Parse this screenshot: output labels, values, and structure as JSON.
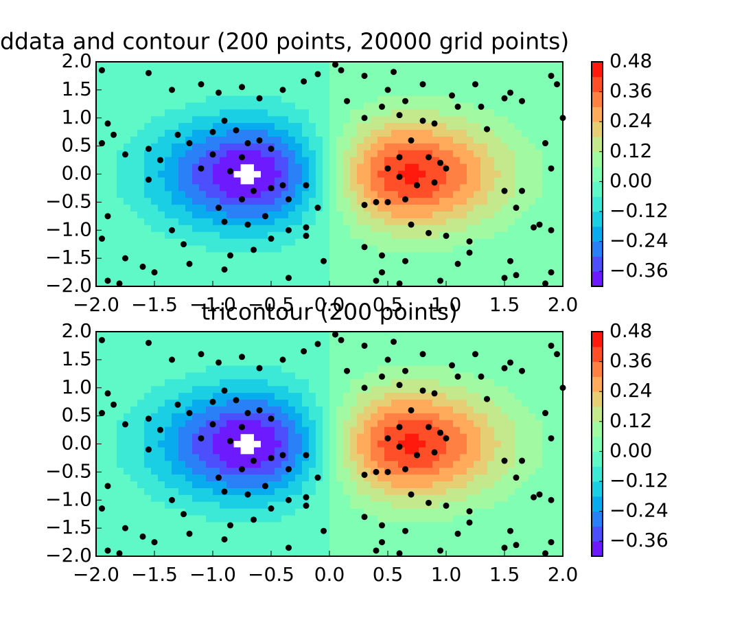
{
  "chart_data": [
    {
      "type": "contour",
      "title": "ddata and contour (200 points, 20000 grid points)",
      "x": [
        -1.95,
        -1.55,
        -1.35,
        -1.1,
        -0.95,
        -0.75,
        -0.6,
        -0.4,
        -0.22,
        -0.1,
        0.1,
        0.3,
        0.5,
        0.55,
        0.8,
        1.05,
        1.25,
        1.55,
        1.9,
        1.95,
        -1.9,
        -1.85,
        -1.95,
        -1.75,
        -1.55,
        -1.3,
        -1.2,
        -1.0,
        -0.9,
        -0.8,
        -0.7,
        -0.6,
        -0.5,
        -0.85,
        -0.75,
        -1.0,
        -1.1,
        -1.45,
        -1.55,
        -0.65,
        -0.75,
        -0.5,
        -0.35,
        -0.4,
        -0.2,
        -0.95,
        -0.55,
        -0.9,
        -0.7,
        -0.2,
        -0.1,
        -1.35,
        -1.25,
        -0.65,
        -0.85,
        -0.5,
        -0.35,
        -0.2,
        -1.9,
        -1.95,
        -1.75,
        -1.6,
        -1.5,
        -1.2,
        -0.9,
        -0.35,
        -0.05,
        -1.8,
        -1.9,
        0.15,
        0.3,
        0.45,
        0.6,
        0.65,
        1.1,
        1.3,
        1.5,
        1.35,
        0.9,
        0.8,
        0.7,
        0.6,
        0.85,
        0.95,
        1.0,
        0.5,
        0.6,
        0.75,
        0.9,
        0.4,
        0.5,
        0.65,
        0.3,
        0.3,
        0.7,
        0.85,
        1.0,
        1.2,
        1.5,
        1.65,
        1.6,
        1.8,
        1.9,
        1.75,
        1.9,
        1.85,
        2.0,
        1.65,
        0.45,
        0.45,
        0.4,
        0.65,
        1.1,
        1.5,
        1.6,
        1.85,
        1.9,
        0.05,
        0.6,
        0.95,
        1.2,
        1.55
      ],
      "y": [
        1.85,
        1.8,
        1.5,
        1.6,
        1.45,
        1.55,
        1.35,
        1.5,
        1.65,
        1.78,
        1.85,
        1.75,
        1.5,
        1.82,
        1.6,
        1.4,
        1.6,
        1.45,
        1.75,
        1.6,
        0.9,
        0.7,
        0.55,
        0.35,
        0.45,
        0.7,
        0.55,
        0.75,
        0.95,
        0.78,
        0.55,
        0.6,
        0.45,
        0.05,
        0.3,
        0.35,
        0.1,
        0.25,
        -0.1,
        -0.3,
        -0.45,
        -0.25,
        -0.45,
        -0.2,
        -0.2,
        -0.6,
        -0.75,
        -0.85,
        -0.9,
        -0.95,
        -0.6,
        -1.0,
        -1.25,
        -1.35,
        -1.45,
        -1.15,
        -1.0,
        -1.1,
        -0.75,
        -1.15,
        -1.5,
        -1.65,
        -1.75,
        -1.6,
        -1.7,
        -1.85,
        -1.55,
        -1.95,
        -1.9,
        1.3,
        1.0,
        1.2,
        1.05,
        1.3,
        1.2,
        1.2,
        1.35,
        0.8,
        0.9,
        0.95,
        0.6,
        0.3,
        0.3,
        0.2,
        0.1,
        0.1,
        -0.05,
        -0.2,
        -0.15,
        -0.5,
        -0.5,
        -0.45,
        -0.55,
        -1.3,
        -0.9,
        -1.05,
        -1.1,
        -1.2,
        -0.3,
        -0.3,
        -0.6,
        -0.9,
        -1.0,
        -0.95,
        0.1,
        0.55,
        1.0,
        1.3,
        -1.45,
        -1.75,
        -1.9,
        -1.55,
        -1.6,
        -1.85,
        -1.8,
        -1.95,
        -1.75,
        1.95,
        -1.95,
        -1.9,
        -1.4,
        -1.55
      ],
      "xlim": [
        -2,
        2
      ],
      "ylim": [
        -2,
        2
      ],
      "xticks": [
        {
          "value": -2,
          "label": "−2.0"
        },
        {
          "value": -1.5,
          "label": "−1.5"
        },
        {
          "value": -1,
          "label": "−1.0"
        },
        {
          "value": -0.5,
          "label": "−0.5"
        },
        {
          "value": 0,
          "label": "0.0"
        },
        0.5,
        {
          "value": 1,
          "label": "1.0"
        },
        1.5,
        {
          "value": 2,
          "label": "2.0"
        }
      ],
      "yticks": [
        {
          "value": -2,
          "label": "−2.0"
        },
        {
          "value": -1.5,
          "label": "−1.5"
        },
        {
          "value": -1,
          "label": "−1.0"
        },
        {
          "value": -0.5,
          "label": "−0.5"
        },
        {
          "value": 0,
          "label": "0.0"
        },
        0.5,
        {
          "value": 1,
          "label": "1.0"
        },
        1.5,
        {
          "value": 2,
          "label": "2.0"
        }
      ],
      "levels": [
        -0.42,
        -0.36,
        -0.3,
        -0.24,
        -0.18,
        -0.12,
        -0.06,
        0,
        0.06,
        0.12,
        0.18,
        0.24,
        0.3,
        0.36,
        0.42,
        0.48
      ],
      "colors": [
        "#6e1aff",
        "#4d4ffc",
        "#2a80f6",
        "#08abee",
        "#1acee3",
        "#3be9d6",
        "#5ef9c6",
        "#80ffb4",
        "#a1f9a1",
        "#c4e98c",
        "#e6ce74",
        "#ffab5b",
        "#ff8042",
        "#ff4f28",
        "#ff1a0d"
      ],
      "colorbar_ticks": [
        {
          "value": -0.36,
          "label": "−0.36"
        },
        {
          "value": -0.24,
          "label": "−0.24"
        },
        {
          "value": -0.12,
          "label": "−0.12"
        },
        {
          "value": 0,
          "label": "0.00"
        },
        0.12,
        0.24,
        0.36,
        0.48
      ],
      "point_color": "#000000"
    },
    {
      "type": "contour",
      "title": "tricontour (200 points)",
      "x": [
        -1.95,
        -1.55,
        -1.35,
        -1.1,
        -0.95,
        -0.75,
        -0.6,
        -0.4,
        -0.22,
        -0.1,
        0.1,
        0.3,
        0.5,
        0.55,
        0.8,
        1.05,
        1.25,
        1.55,
        1.9,
        1.95,
        -1.9,
        -1.85,
        -1.95,
        -1.75,
        -1.55,
        -1.3,
        -1.2,
        -1.0,
        -0.9,
        -0.8,
        -0.7,
        -0.6,
        -0.5,
        -0.85,
        -0.75,
        -1.0,
        -1.1,
        -1.45,
        -1.55,
        -0.65,
        -0.75,
        -0.5,
        -0.35,
        -0.4,
        -0.2,
        -0.95,
        -0.55,
        -0.9,
        -0.7,
        -0.2,
        -0.1,
        -1.35,
        -1.25,
        -0.65,
        -0.85,
        -0.5,
        -0.35,
        -0.2,
        -1.9,
        -1.95,
        -1.75,
        -1.6,
        -1.5,
        -1.2,
        -0.9,
        -0.35,
        -0.05,
        -1.8,
        -1.9,
        0.15,
        0.3,
        0.45,
        0.6,
        0.65,
        1.1,
        1.3,
        1.5,
        1.35,
        0.9,
        0.8,
        0.7,
        0.6,
        0.85,
        0.95,
        1.0,
        0.5,
        0.6,
        0.75,
        0.9,
        0.4,
        0.5,
        0.65,
        0.3,
        0.3,
        0.7,
        0.85,
        1.0,
        1.2,
        1.5,
        1.65,
        1.6,
        1.8,
        1.9,
        1.75,
        1.9,
        1.85,
        2.0,
        1.65,
        0.45,
        0.45,
        0.4,
        0.65,
        1.1,
        1.5,
        1.6,
        1.85,
        1.9,
        0.05,
        0.6,
        0.95,
        1.2,
        1.55
      ],
      "y": [
        1.85,
        1.8,
        1.5,
        1.6,
        1.45,
        1.55,
        1.35,
        1.5,
        1.65,
        1.78,
        1.85,
        1.75,
        1.5,
        1.82,
        1.6,
        1.4,
        1.6,
        1.45,
        1.75,
        1.6,
        0.9,
        0.7,
        0.55,
        0.35,
        0.45,
        0.7,
        0.55,
        0.75,
        0.95,
        0.78,
        0.55,
        0.6,
        0.45,
        0.05,
        0.3,
        0.35,
        0.1,
        0.25,
        -0.1,
        -0.3,
        -0.45,
        -0.25,
        -0.45,
        -0.2,
        -0.2,
        -0.6,
        -0.75,
        -0.85,
        -0.9,
        -0.95,
        -0.6,
        -1.0,
        -1.25,
        -1.35,
        -1.45,
        -1.15,
        -1.0,
        -1.1,
        -0.75,
        -1.15,
        -1.5,
        -1.65,
        -1.75,
        -1.6,
        -1.7,
        -1.85,
        -1.55,
        -1.95,
        -1.9,
        1.3,
        1.0,
        1.2,
        1.05,
        1.3,
        1.2,
        1.2,
        1.35,
        0.8,
        0.9,
        0.95,
        0.6,
        0.3,
        0.3,
        0.2,
        0.1,
        0.1,
        -0.05,
        -0.2,
        -0.15,
        -0.5,
        -0.5,
        -0.45,
        -0.55,
        -1.3,
        -0.9,
        -1.05,
        -1.1,
        -1.2,
        -0.3,
        -0.3,
        -0.6,
        -0.9,
        -1.0,
        -0.95,
        0.1,
        0.55,
        1.0,
        1.3,
        -1.45,
        -1.75,
        -1.9,
        -1.55,
        -1.6,
        -1.85,
        -1.8,
        -1.95,
        -1.75,
        1.95,
        -1.95,
        -1.9,
        -1.4,
        -1.55
      ],
      "xlim": [
        -2,
        2
      ],
      "ylim": [
        -2,
        2
      ],
      "xticks": [
        {
          "value": -2,
          "label": "−2.0"
        },
        {
          "value": -1.5,
          "label": "−1.5"
        },
        {
          "value": -1,
          "label": "−1.0"
        },
        {
          "value": -0.5,
          "label": "−0.5"
        },
        {
          "value": 0,
          "label": "0.0"
        },
        0.5,
        {
          "value": 1,
          "label": "1.0"
        },
        1.5,
        {
          "value": 2,
          "label": "2.0"
        }
      ],
      "yticks": [
        {
          "value": -2,
          "label": "−2.0"
        },
        {
          "value": -1.5,
          "label": "−1.5"
        },
        {
          "value": -1,
          "label": "−1.0"
        },
        {
          "value": -0.5,
          "label": "−0.5"
        },
        {
          "value": 0,
          "label": "0.0"
        },
        0.5,
        {
          "value": 1,
          "label": "1.0"
        },
        1.5,
        {
          "value": 2,
          "label": "2.0"
        }
      ],
      "levels": [
        -0.42,
        -0.36,
        -0.3,
        -0.24,
        -0.18,
        -0.12,
        -0.06,
        0,
        0.06,
        0.12,
        0.18,
        0.24,
        0.3,
        0.36,
        0.42,
        0.48
      ],
      "colors": [
        "#6e1aff",
        "#4d4ffc",
        "#2a80f6",
        "#08abee",
        "#1acee3",
        "#3be9d6",
        "#5ef9c6",
        "#80ffb4",
        "#a1f9a1",
        "#c4e98c",
        "#e6ce74",
        "#ffab5b",
        "#ff8042",
        "#ff4f28",
        "#ff1a0d"
      ],
      "colorbar_ticks": [
        {
          "value": -0.36,
          "label": "−0.36"
        },
        {
          "value": -0.24,
          "label": "−0.24"
        },
        {
          "value": -0.12,
          "label": "−0.12"
        },
        {
          "value": 0,
          "label": "0.00"
        },
        0.12,
        0.24,
        0.36,
        0.48
      ],
      "point_color": "#000000"
    }
  ]
}
